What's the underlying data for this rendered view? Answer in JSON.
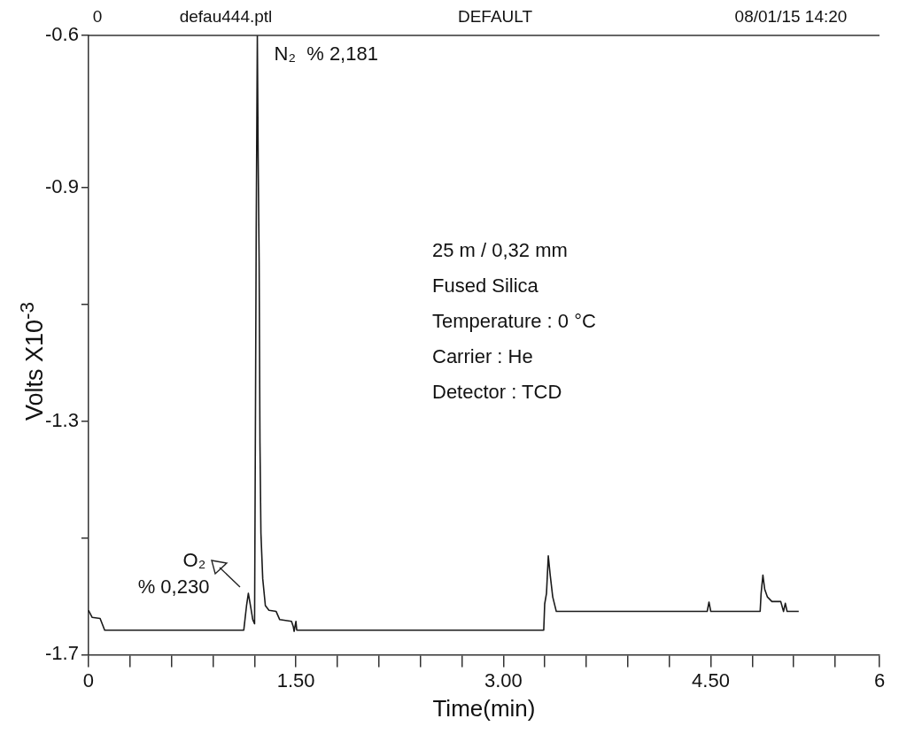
{
  "chart_data": {
    "type": "line",
    "xlabel": "Time(min)",
    "ylabel": "Volts  X10$^{-3}$",
    "xlim": [
      0,
      5.72
    ],
    "ylim": [
      -1.7,
      -0.64
    ],
    "xticks": [
      0,
      {
        "value": 0.3,
        "label": null
      },
      {
        "value": 0.6,
        "label": null
      },
      {
        "value": 0.9,
        "label": null
      },
      {
        "value": 1.2,
        "label": null
      },
      {
        "value": 1.5,
        "label": "1.50"
      },
      {
        "value": 1.8,
        "label": null
      },
      {
        "value": 2.1,
        "label": null
      },
      {
        "value": 2.4,
        "label": null
      },
      {
        "value": 2.7,
        "label": null
      },
      {
        "value": 3,
        "label": "3.00"
      },
      {
        "value": 3.3,
        "label": null
      },
      {
        "value": 3.6,
        "label": null
      },
      {
        "value": 3.9,
        "label": null
      },
      {
        "value": 4.2,
        "label": null
      },
      {
        "value": 4.5,
        "label": "4.50"
      },
      {
        "value": 4.8,
        "label": null
      },
      {
        "value": 5.1,
        "label": null
      },
      {
        "value": 5.4,
        "label": null
      },
      {
        "value": 5.72,
        "label": "6"
      }
    ],
    "yticks": [
      {
        "value": -0.64,
        "label": "-0.6"
      },
      -0.9,
      {
        "value": -1.1,
        "label": null
      },
      -1.3,
      {
        "value": -1.5,
        "label": null
      },
      -1.7
    ],
    "grid": false,
    "marker": "none",
    "line_style": "solid",
    "series": [
      {
        "color": "#1a1a1a",
        "x": [
          0,
          0.026,
          0.084,
          0.117,
          1.123,
          1.143,
          1.156,
          1.175,
          1.188,
          1.201,
          1.208,
          1.213,
          1.221,
          1.227,
          1.234,
          1.24,
          1.247,
          1.26,
          1.279,
          1.305,
          1.357,
          1.383,
          1.468,
          1.481,
          1.487,
          1.5,
          1.506,
          1.532,
          3.292,
          3.299,
          3.312,
          3.325,
          3.338,
          3.357,
          3.383,
          4.474,
          4.487,
          4.5,
          4.857,
          4.864,
          4.877,
          4.89,
          4.909,
          4.942,
          5.006,
          5.026,
          5.039,
          5.052,
          5.136
        ],
        "values": [
          -1.624,
          -1.636,
          -1.638,
          -1.658,
          -1.658,
          -1.616,
          -1.595,
          -1.621,
          -1.64,
          -1.647,
          -1.26,
          -0.965,
          -0.64,
          -0.849,
          -1.027,
          -1.337,
          -1.492,
          -1.57,
          -1.616,
          -1.624,
          -1.626,
          -1.64,
          -1.643,
          -1.652,
          -1.66,
          -1.643,
          -1.658,
          -1.658,
          -1.658,
          -1.613,
          -1.595,
          -1.531,
          -1.562,
          -1.601,
          -1.626,
          -1.626,
          -1.61,
          -1.626,
          -1.626,
          -1.595,
          -1.564,
          -1.588,
          -1.601,
          -1.609,
          -1.609,
          -1.626,
          -1.612,
          -1.626,
          -1.626
        ]
      }
    ],
    "annotations": [
      "0",
      "defau444.ptl",
      "DEFAULT",
      "08/01/15 14:20",
      "25 m / 0,32 mm",
      "Fused Silica",
      "Temperature : 0 °C",
      "Carrier : He",
      "Detector : TCD",
      {
        "text": "N₂  % 2,181",
        "x": 1.221,
        "y": -0.64
      },
      {
        "text": "O₂\n% 0,230",
        "x": 1.156,
        "y": -1.595
      }
    ]
  }
}
